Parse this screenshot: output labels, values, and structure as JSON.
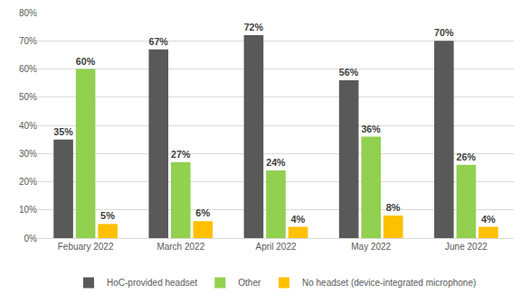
{
  "chart_data": {
    "type": "bar",
    "categories": [
      "Febuary 2022",
      "March 2022",
      "April 2022",
      "May 2022",
      "June 2022"
    ],
    "series": [
      {
        "name": "HoC-provided headset",
        "color": "#595959",
        "values": [
          35,
          67,
          72,
          56,
          70
        ],
        "value_labels": [
          "35%",
          "67%",
          "72%",
          "56%",
          "70%"
        ]
      },
      {
        "name": "Other",
        "color": "#92D050",
        "values": [
          60,
          27,
          24,
          36,
          26
        ],
        "value_labels": [
          "60%",
          "27%",
          "24%",
          "36%",
          "26%"
        ]
      },
      {
        "name": "No headset (device-integrated microphone)",
        "color": "#FFC000",
        "values": [
          5,
          6,
          4,
          8,
          4
        ],
        "value_labels": [
          "5%",
          "6%",
          "4%",
          "8%",
          "4%"
        ]
      }
    ],
    "ylim": [
      0,
      80
    ],
    "yticks": [
      {
        "value": 0,
        "label": "0%"
      },
      {
        "value": 10,
        "label": "10%"
      },
      {
        "value": 20,
        "label": "20%"
      },
      {
        "value": 30,
        "label": "30%"
      },
      {
        "value": 40,
        "label": "40%"
      },
      {
        "value": 50,
        "label": "50%"
      },
      {
        "value": 60,
        "label": "60%"
      },
      {
        "value": 70,
        "label": "70%"
      },
      {
        "value": 80,
        "label": "80%"
      }
    ],
    "grid": true,
    "legend": "bottom",
    "data_labels": true
  }
}
